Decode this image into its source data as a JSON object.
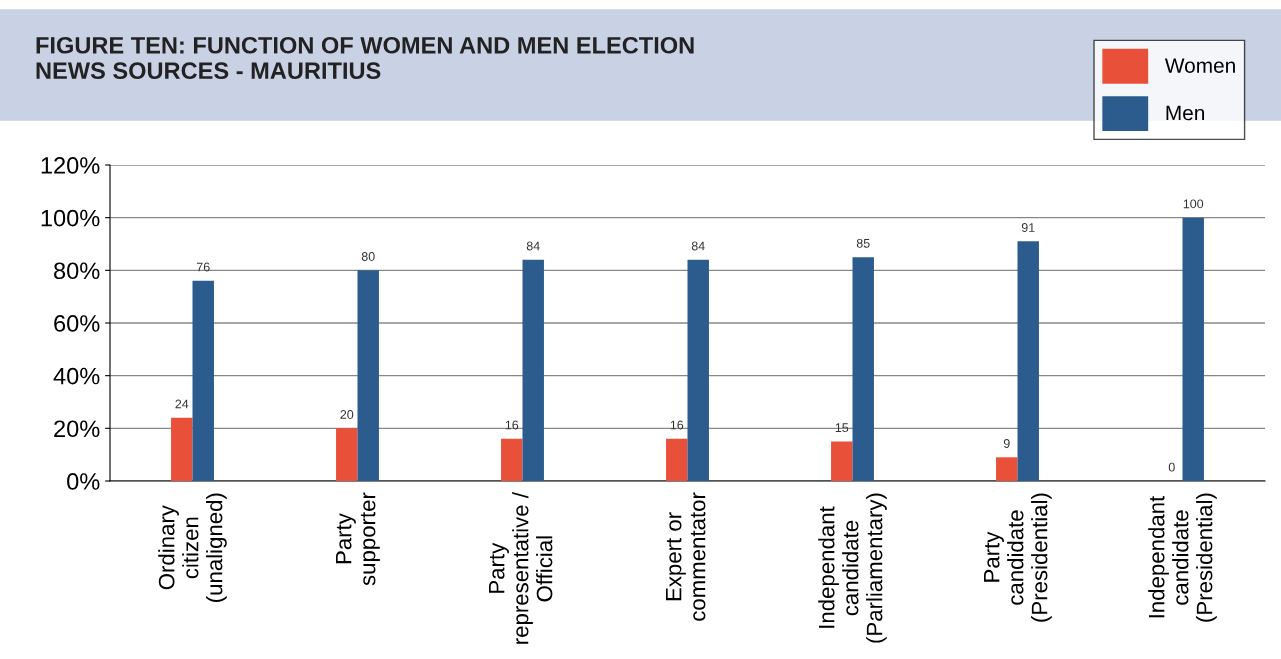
{
  "chart_data": {
    "type": "bar",
    "title": "FIGURE TEN: FUNCTION OF WOMEN AND MEN ELECTION\nNEWS SOURCES - MAURITIUS",
    "categories": [
      "Ordinary\ncitizen\n(unaligned)",
      "Party\nsupporter",
      "Party\nrepresentative /\nOfficial",
      "Expert or\ncommentator",
      "Independant\ncandidate\n(Parliamentary)",
      "Party\ncandidate\n(Presidential)",
      "Independant\ncandidate\n(Presidential)"
    ],
    "series": [
      {
        "name": "Women",
        "color": "#e9503a",
        "values": [
          24,
          20,
          16,
          16,
          15,
          9,
          0
        ]
      },
      {
        "name": "Men",
        "color": "#2c5b8e",
        "values": [
          76,
          80,
          84,
          84,
          85,
          91,
          100
        ]
      }
    ],
    "ylim": [
      0,
      120
    ],
    "yticks": [
      {
        "value": 0,
        "label": "0%"
      },
      {
        "value": 20,
        "label": "20%"
      },
      {
        "value": 40,
        "label": "40%"
      },
      {
        "value": 60,
        "label": "60%"
      },
      {
        "value": 80,
        "label": "80%"
      },
      {
        "value": 100,
        "label": "100%"
      },
      {
        "value": 120,
        "label": "120%"
      }
    ],
    "data_labels": true,
    "grid": "y",
    "legend": "top right"
  }
}
